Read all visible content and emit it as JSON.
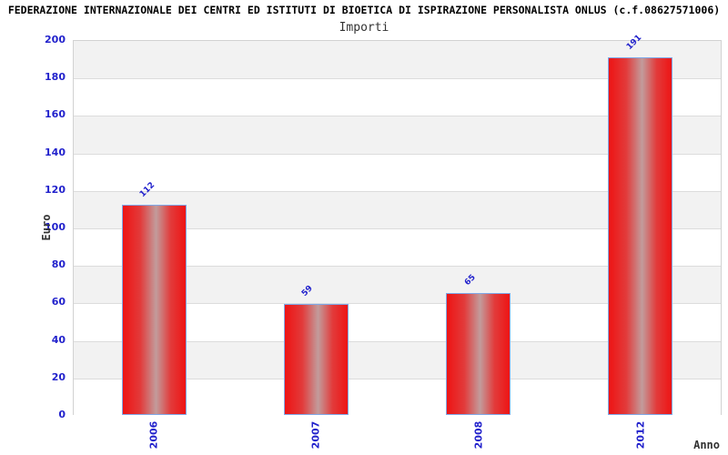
{
  "header": {
    "title": "FEDERAZIONE INTERNAZIONALE DEI CENTRI ED ISTITUTI DI BIOETICA DI ISPIRAZIONE PERSONALISTA ONLUS (c.f.08627571006)",
    "subtitle": "Importi"
  },
  "chart_data": {
    "type": "bar",
    "title": "FEDERAZIONE INTERNAZIONALE DEI CENTRI ED ISTITUTI DI BIOETICA DI ISPIRAZIONE PERSONALISTA ONLUS (c.f.08627571006)",
    "subtitle": "Importi",
    "categories": [
      "2006",
      "2007",
      "2008",
      "2012"
    ],
    "values": [
      112,
      59,
      65,
      191
    ],
    "xlabel": "Anno",
    "ylabel": "Euro",
    "ylim": [
      0,
      200
    ],
    "ytick_step": 20,
    "yticks": [
      0,
      20,
      40,
      60,
      80,
      100,
      120,
      140,
      160,
      180,
      200
    ],
    "grid": "alternating-horizontal-bands",
    "legend": "none",
    "colors": {
      "bar_red": "#ee1414",
      "bar_highlight": "#c29c9c",
      "bar_border": "#7fa8e8",
      "tick_blue": "#2222cc",
      "band_gray": "#f2f2f2",
      "band_white": "#ffffff",
      "gridline": "#dcdcdc",
      "title_black": "#000000",
      "axis_title_gray": "#333333"
    }
  }
}
